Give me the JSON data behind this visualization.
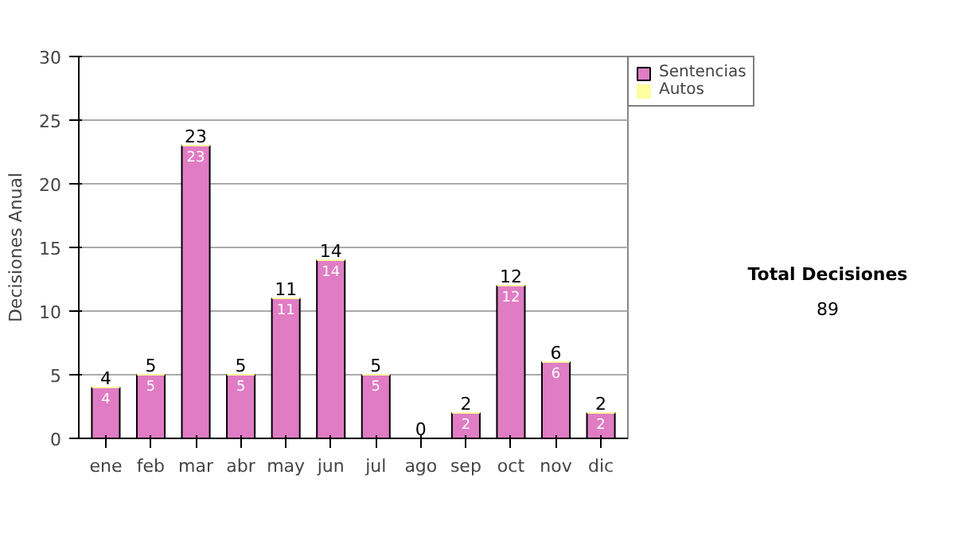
{
  "chart_data": {
    "type": "bar",
    "stacked": true,
    "ylabel": "Decisiones Anual",
    "categories": [
      "ene",
      "feb",
      "mar",
      "abr",
      "may",
      "jun",
      "jul",
      "ago",
      "sep",
      "oct",
      "nov",
      "dic"
    ],
    "series": [
      {
        "name": "Sentencias",
        "color": "#e07cc4",
        "values": [
          4,
          5,
          23,
          5,
          11,
          14,
          5,
          0,
          2,
          12,
          6,
          2
        ],
        "value_labels": [
          "4",
          "5",
          "23",
          "5",
          "11",
          "14",
          "5",
          null,
          "2",
          "12",
          "6",
          "2"
        ]
      },
      {
        "name": "Autos",
        "color": "#ffffa0",
        "values": [
          0,
          0,
          0,
          0,
          0,
          0,
          0,
          0,
          0,
          0,
          0,
          0
        ]
      }
    ],
    "totals": [
      "4",
      "5",
      "23",
      "5",
      "11",
      "14",
      "5",
      "0",
      "2",
      "12",
      "6",
      "2"
    ],
    "ylim": [
      0,
      30
    ],
    "yticks": [
      0,
      5,
      10,
      15,
      20,
      25,
      30
    ],
    "grid": "y",
    "legend": "right",
    "annotations": [
      "Total Decisiones",
      "89"
    ]
  }
}
